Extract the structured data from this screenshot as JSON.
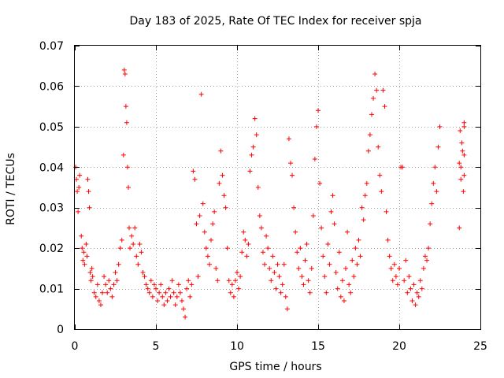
{
  "chart_data": {
    "type": "scatter",
    "title": "Day 183 of 2025, Rate Of TEC Index for receiver spja",
    "xlabel": "GPS time / hours",
    "ylabel": "ROTI / TECUs",
    "xlim": [
      0,
      25
    ],
    "ylim": [
      0,
      0.07
    ],
    "x_ticks": [
      "0",
      "5",
      "10",
      "15",
      "20",
      "25"
    ],
    "y_ticks": [
      "0",
      "0.01",
      "0.02",
      "0.03",
      "0.04",
      "0.05",
      "0.06",
      "0.07"
    ],
    "grid": true,
    "marker": "+",
    "color": "#ff0000",
    "series": [
      {
        "points": [
          [
            0.05,
            0.04
          ],
          [
            0.1,
            0.037
          ],
          [
            0.15,
            0.034
          ],
          [
            0.2,
            0.029
          ],
          [
            0.25,
            0.035
          ],
          [
            0.3,
            0.038
          ],
          [
            0.4,
            0.023
          ],
          [
            0.45,
            0.02
          ],
          [
            0.5,
            0.017
          ],
          [
            0.55,
            0.019
          ],
          [
            0.6,
            0.016
          ],
          [
            0.7,
            0.021
          ],
          [
            0.75,
            0.018
          ],
          [
            0.8,
            0.037
          ],
          [
            0.85,
            0.034
          ],
          [
            0.9,
            0.03
          ],
          [
            0.95,
            0.014
          ],
          [
            1.0,
            0.012
          ],
          [
            1.05,
            0.015
          ],
          [
            1.1,
            0.013
          ],
          [
            1.2,
            0.009
          ],
          [
            1.3,
            0.008
          ],
          [
            1.4,
            0.011
          ],
          [
            1.5,
            0.007
          ],
          [
            1.6,
            0.006
          ],
          [
            1.7,
            0.009
          ],
          [
            1.8,
            0.013
          ],
          [
            1.9,
            0.011
          ],
          [
            2.0,
            0.009
          ],
          [
            2.1,
            0.012
          ],
          [
            2.2,
            0.01
          ],
          [
            2.3,
            0.008
          ],
          [
            2.4,
            0.011
          ],
          [
            2.5,
            0.014
          ],
          [
            2.6,
            0.012
          ],
          [
            2.7,
            0.016
          ],
          [
            2.8,
            0.02
          ],
          [
            2.9,
            0.022
          ],
          [
            3.0,
            0.043
          ],
          [
            3.05,
            0.064
          ],
          [
            3.1,
            0.063
          ],
          [
            3.15,
            0.055
          ],
          [
            3.2,
            0.051
          ],
          [
            3.25,
            0.04
          ],
          [
            3.3,
            0.035
          ],
          [
            3.35,
            0.025
          ],
          [
            3.4,
            0.02
          ],
          [
            3.5,
            0.023
          ],
          [
            3.6,
            0.021
          ],
          [
            3.7,
            0.025
          ],
          [
            3.8,
            0.018
          ],
          [
            3.9,
            0.016
          ],
          [
            4.0,
            0.021
          ],
          [
            4.1,
            0.019
          ],
          [
            4.2,
            0.014
          ],
          [
            4.3,
            0.013
          ],
          [
            4.4,
            0.011
          ],
          [
            4.5,
            0.01
          ],
          [
            4.6,
            0.009
          ],
          [
            4.7,
            0.012
          ],
          [
            4.8,
            0.008
          ],
          [
            4.9,
            0.011
          ],
          [
            5.0,
            0.01
          ],
          [
            5.1,
            0.007
          ],
          [
            5.2,
            0.009
          ],
          [
            5.3,
            0.011
          ],
          [
            5.4,
            0.008
          ],
          [
            5.5,
            0.006
          ],
          [
            5.6,
            0.009
          ],
          [
            5.7,
            0.007
          ],
          [
            5.8,
            0.01
          ],
          [
            5.9,
            0.008
          ],
          [
            6.0,
            0.012
          ],
          [
            6.1,
            0.009
          ],
          [
            6.2,
            0.006
          ],
          [
            6.3,
            0.008
          ],
          [
            6.4,
            0.011
          ],
          [
            6.5,
            0.009
          ],
          [
            6.6,
            0.007
          ],
          [
            6.7,
            0.005
          ],
          [
            6.8,
            0.003
          ],
          [
            6.9,
            0.01
          ],
          [
            7.0,
            0.012
          ],
          [
            7.1,
            0.008
          ],
          [
            7.2,
            0.011
          ],
          [
            7.3,
            0.039
          ],
          [
            7.4,
            0.037
          ],
          [
            7.5,
            0.026
          ],
          [
            7.6,
            0.013
          ],
          [
            7.7,
            0.028
          ],
          [
            7.8,
            0.058
          ],
          [
            7.9,
            0.031
          ],
          [
            8.0,
            0.024
          ],
          [
            8.1,
            0.02
          ],
          [
            8.2,
            0.018
          ],
          [
            8.3,
            0.016
          ],
          [
            8.4,
            0.022
          ],
          [
            8.5,
            0.026
          ],
          [
            8.6,
            0.029
          ],
          [
            8.7,
            0.015
          ],
          [
            8.8,
            0.012
          ],
          [
            8.9,
            0.036
          ],
          [
            9.0,
            0.044
          ],
          [
            9.1,
            0.038
          ],
          [
            9.2,
            0.033
          ],
          [
            9.3,
            0.03
          ],
          [
            9.4,
            0.02
          ],
          [
            9.5,
            0.012
          ],
          [
            9.6,
            0.009
          ],
          [
            9.7,
            0.011
          ],
          [
            9.8,
            0.008
          ],
          [
            9.9,
            0.012
          ],
          [
            10.0,
            0.014
          ],
          [
            10.1,
            0.01
          ],
          [
            10.2,
            0.013
          ],
          [
            10.3,
            0.019
          ],
          [
            10.4,
            0.024
          ],
          [
            10.5,
            0.022
          ],
          [
            10.6,
            0.018
          ],
          [
            10.7,
            0.021
          ],
          [
            10.8,
            0.039
          ],
          [
            10.9,
            0.043
          ],
          [
            11.0,
            0.045
          ],
          [
            11.1,
            0.052
          ],
          [
            11.2,
            0.048
          ],
          [
            11.3,
            0.035
          ],
          [
            11.4,
            0.028
          ],
          [
            11.5,
            0.025
          ],
          [
            11.6,
            0.019
          ],
          [
            11.7,
            0.016
          ],
          [
            11.8,
            0.023
          ],
          [
            11.9,
            0.02
          ],
          [
            12.0,
            0.015
          ],
          [
            12.1,
            0.012
          ],
          [
            12.2,
            0.018
          ],
          [
            12.3,
            0.014
          ],
          [
            12.4,
            0.01
          ],
          [
            12.5,
            0.016
          ],
          [
            12.6,
            0.013
          ],
          [
            12.7,
            0.009
          ],
          [
            12.8,
            0.011
          ],
          [
            12.9,
            0.016
          ],
          [
            13.0,
            0.008
          ],
          [
            13.1,
            0.005
          ],
          [
            13.2,
            0.047
          ],
          [
            13.3,
            0.041
          ],
          [
            13.4,
            0.038
          ],
          [
            13.5,
            0.03
          ],
          [
            13.6,
            0.024
          ],
          [
            13.7,
            0.019
          ],
          [
            13.8,
            0.015
          ],
          [
            13.9,
            0.02
          ],
          [
            14.0,
            0.013
          ],
          [
            14.1,
            0.011
          ],
          [
            14.2,
            0.017
          ],
          [
            14.3,
            0.021
          ],
          [
            14.4,
            0.012
          ],
          [
            14.5,
            0.009
          ],
          [
            14.6,
            0.015
          ],
          [
            14.7,
            0.028
          ],
          [
            14.8,
            0.042
          ],
          [
            14.9,
            0.05
          ],
          [
            15.0,
            0.054
          ],
          [
            15.1,
            0.036
          ],
          [
            15.2,
            0.025
          ],
          [
            15.3,
            0.018
          ],
          [
            15.4,
            0.013
          ],
          [
            15.5,
            0.009
          ],
          [
            15.6,
            0.021
          ],
          [
            15.7,
            0.016
          ],
          [
            15.8,
            0.029
          ],
          [
            15.9,
            0.033
          ],
          [
            16.0,
            0.026
          ],
          [
            16.1,
            0.014
          ],
          [
            16.2,
            0.01
          ],
          [
            16.3,
            0.019
          ],
          [
            16.4,
            0.008
          ],
          [
            16.5,
            0.012
          ],
          [
            16.6,
            0.007
          ],
          [
            16.7,
            0.015
          ],
          [
            16.8,
            0.024
          ],
          [
            16.9,
            0.011
          ],
          [
            17.0,
            0.009
          ],
          [
            17.1,
            0.017
          ],
          [
            17.2,
            0.013
          ],
          [
            17.3,
            0.02
          ],
          [
            17.4,
            0.016
          ],
          [
            17.5,
            0.022
          ],
          [
            17.6,
            0.018
          ],
          [
            17.7,
            0.03
          ],
          [
            17.8,
            0.027
          ],
          [
            17.9,
            0.033
          ],
          [
            18.0,
            0.036
          ],
          [
            18.1,
            0.044
          ],
          [
            18.2,
            0.048
          ],
          [
            18.3,
            0.053
          ],
          [
            18.4,
            0.057
          ],
          [
            18.5,
            0.063
          ],
          [
            18.6,
            0.059
          ],
          [
            18.7,
            0.045
          ],
          [
            18.8,
            0.038
          ],
          [
            18.9,
            0.034
          ],
          [
            19.0,
            0.059
          ],
          [
            19.1,
            0.055
          ],
          [
            19.2,
            0.029
          ],
          [
            19.3,
            0.022
          ],
          [
            19.4,
            0.018
          ],
          [
            19.5,
            0.015
          ],
          [
            19.6,
            0.012
          ],
          [
            19.7,
            0.016
          ],
          [
            19.8,
            0.013
          ],
          [
            19.9,
            0.011
          ],
          [
            20.0,
            0.015
          ],
          [
            20.1,
            0.04
          ],
          [
            20.2,
            0.04
          ],
          [
            20.3,
            0.012
          ],
          [
            20.4,
            0.017
          ],
          [
            20.5,
            0.009
          ],
          [
            20.6,
            0.013
          ],
          [
            20.7,
            0.01
          ],
          [
            20.8,
            0.007
          ],
          [
            20.9,
            0.011
          ],
          [
            21.0,
            0.006
          ],
          [
            21.1,
            0.009
          ],
          [
            21.2,
            0.008
          ],
          [
            21.3,
            0.012
          ],
          [
            21.4,
            0.01
          ],
          [
            21.5,
            0.015
          ],
          [
            21.6,
            0.018
          ],
          [
            21.7,
            0.017
          ],
          [
            21.8,
            0.02
          ],
          [
            21.9,
            0.026
          ],
          [
            22.0,
            0.031
          ],
          [
            22.1,
            0.036
          ],
          [
            22.2,
            0.04
          ],
          [
            22.3,
            0.034
          ],
          [
            22.4,
            0.045
          ],
          [
            22.5,
            0.05
          ],
          [
            23.7,
            0.025
          ],
          [
            23.8,
            0.037
          ],
          [
            23.9,
            0.044
          ],
          [
            24.0,
            0.05
          ],
          [
            24.0,
            0.051
          ],
          [
            24.0,
            0.043
          ],
          [
            24.0,
            0.038
          ],
          [
            23.95,
            0.034
          ],
          [
            23.85,
            0.046
          ],
          [
            23.75,
            0.049
          ],
          [
            23.7,
            0.041
          ],
          [
            23.8,
            0.04
          ]
        ]
      }
    ]
  }
}
